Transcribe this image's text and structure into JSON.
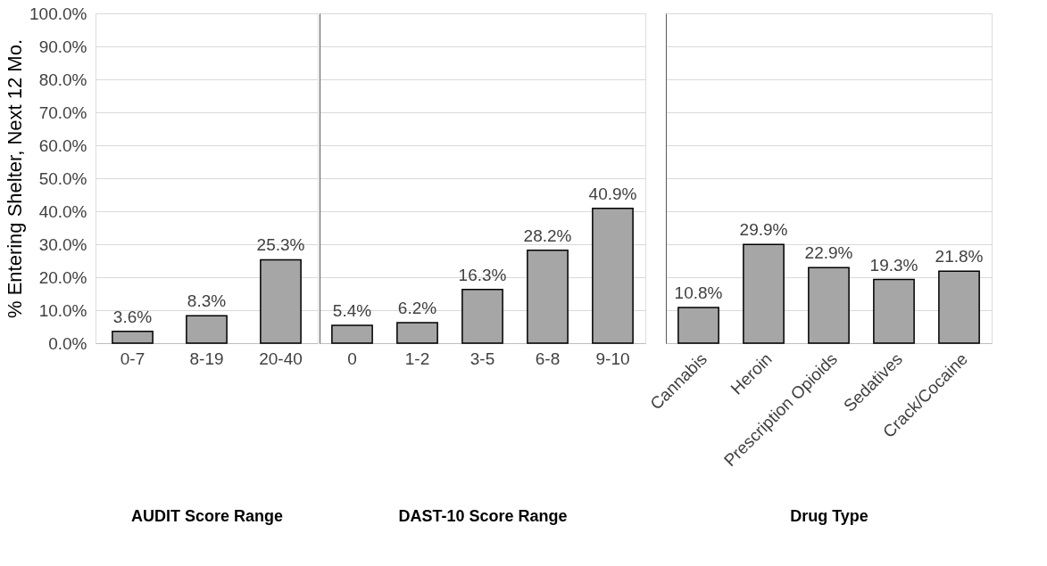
{
  "chart_data": [
    {
      "type": "bar",
      "ylabel": "% Entering Shelter, Next 12 Mo.",
      "xlabel": "AUDIT Score Range",
      "categories": [
        "0-7",
        "8-19",
        "20-40"
      ],
      "values": [
        3.6,
        8.3,
        25.3
      ],
      "value_labels": [
        "3.6%",
        "8.3%",
        "25.3%"
      ],
      "color": "#a6a6a6",
      "ylim": [
        0,
        100
      ],
      "yticks": [
        {
          "value": 0,
          "label": "0.0%"
        },
        {
          "value": 10,
          "label": "10.0%"
        },
        {
          "value": 20,
          "label": "20.0%"
        },
        {
          "value": 30,
          "label": "30.0%"
        },
        {
          "value": 40,
          "label": "40.0%"
        },
        {
          "value": 50,
          "label": "50.0%"
        },
        {
          "value": 60,
          "label": "60.0%"
        },
        {
          "value": 70,
          "label": "70.0%"
        },
        {
          "value": 80,
          "label": "80.0%"
        },
        {
          "value": 90,
          "label": "90.0%"
        },
        {
          "value": 100,
          "label": "100.0%"
        }
      ],
      "grid": "y"
    },
    {
      "type": "bar",
      "xlabel": "DAST-10 Score Range",
      "categories": [
        "0",
        "1-2",
        "3-5",
        "6-8",
        "9-10"
      ],
      "values": [
        5.4,
        6.2,
        16.3,
        28.2,
        40.9
      ],
      "value_labels": [
        "5.4%",
        "6.2%",
        "16.3%",
        "28.2%",
        "40.9%"
      ],
      "color": "#a6a6a6",
      "ylim": [
        0,
        100
      ],
      "yticks": [
        0,
        10,
        20,
        30,
        40,
        50,
        60,
        70,
        80,
        90,
        100
      ],
      "grid": "y",
      "tick_labels": "x"
    },
    {
      "type": "bar",
      "xlabel": "Drug Type",
      "categories": [
        "Cannabis",
        "Heroin",
        "Prescription Opioids",
        "Sedatives",
        "Crack/Cocaine"
      ],
      "values": [
        10.8,
        29.9,
        22.9,
        19.3,
        21.8
      ],
      "value_labels": [
        "10.8%",
        "29.9%",
        "22.9%",
        "19.3%",
        "21.8%"
      ],
      "color": "#a6a6a6",
      "ylim": [
        0,
        100
      ],
      "yticks": [
        0,
        10,
        20,
        30,
        40,
        50,
        60,
        70,
        80,
        90,
        100
      ],
      "grid": "y",
      "tick_labels": "x"
    }
  ]
}
